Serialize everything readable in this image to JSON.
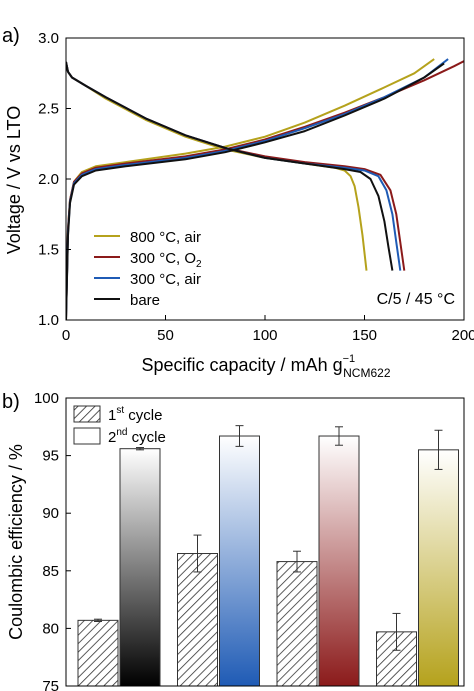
{
  "chart_data": [
    {
      "type": "line",
      "panel_label": "a)",
      "xlabel": "Specific capacity / mAh g",
      "xlabel_sup": "−1",
      "xlabel_sub": "NCM622",
      "ylabel": "Voltage / V vs LTO",
      "xlim": [
        0,
        200
      ],
      "ylim": [
        1.0,
        3.0
      ],
      "xticks": [
        "0",
        "50",
        "100",
        "150",
        "200"
      ],
      "yticks": [
        "1.0",
        "1.5",
        "2.0",
        "2.5",
        "3.0"
      ],
      "annotation": "C/5 / 45 °C",
      "legend_position": "bottom-left",
      "series": [
        {
          "name_main": "800 °C, air",
          "name_sub": "",
          "color": "#b5a21c",
          "charge": [
            [
              0,
              1.0
            ],
            [
              1,
              1.65
            ],
            [
              2,
              1.85
            ],
            [
              4,
              1.98
            ],
            [
              8,
              2.05
            ],
            [
              15,
              2.09
            ],
            [
              30,
              2.12
            ],
            [
              60,
              2.18
            ],
            [
              80,
              2.23
            ],
            [
              100,
              2.3
            ],
            [
              120,
              2.4
            ],
            [
              140,
              2.52
            ],
            [
              160,
              2.65
            ],
            [
              175,
              2.75
            ],
            [
              185,
              2.85
            ]
          ],
          "discharge": [
            [
              0,
              2.83
            ],
            [
              1,
              2.76
            ],
            [
              3,
              2.72
            ],
            [
              10,
              2.66
            ],
            [
              20,
              2.57
            ],
            [
              40,
              2.42
            ],
            [
              60,
              2.3
            ],
            [
              80,
              2.21
            ],
            [
              100,
              2.15
            ],
            [
              120,
              2.11
            ],
            [
              135,
              2.08
            ],
            [
              140,
              2.06
            ],
            [
              143,
              2.02
            ],
            [
              145,
              1.95
            ],
            [
              147,
              1.8
            ],
            [
              149,
              1.6
            ],
            [
              151,
              1.35
            ]
          ]
        },
        {
          "name_main": "300 °C, O",
          "name_sub": "2",
          "color": "#8b1a1a",
          "charge": [
            [
              0,
              1.0
            ],
            [
              1,
              1.65
            ],
            [
              2,
              1.85
            ],
            [
              4,
              1.98
            ],
            [
              8,
              2.04
            ],
            [
              15,
              2.08
            ],
            [
              30,
              2.11
            ],
            [
              60,
              2.16
            ],
            [
              80,
              2.21
            ],
            [
              100,
              2.28
            ],
            [
              120,
              2.37
            ],
            [
              140,
              2.47
            ],
            [
              160,
              2.58
            ],
            [
              180,
              2.7
            ],
            [
              195,
              2.8
            ],
            [
              202,
              2.85
            ]
          ],
          "discharge": [
            [
              0,
              2.83
            ],
            [
              1,
              2.76
            ],
            [
              3,
              2.72
            ],
            [
              10,
              2.66
            ],
            [
              20,
              2.58
            ],
            [
              40,
              2.43
            ],
            [
              60,
              2.31
            ],
            [
              80,
              2.22
            ],
            [
              100,
              2.16
            ],
            [
              120,
              2.12
            ],
            [
              140,
              2.09
            ],
            [
              150,
              2.07
            ],
            [
              158,
              2.03
            ],
            [
              163,
              1.92
            ],
            [
              166,
              1.75
            ],
            [
              168,
              1.55
            ],
            [
              170,
              1.35
            ]
          ]
        },
        {
          "name_main": "300 °C, air",
          "name_sub": "",
          "color": "#1f5bb5",
          "charge": [
            [
              0,
              1.0
            ],
            [
              1,
              1.62
            ],
            [
              2,
              1.84
            ],
            [
              4,
              1.97
            ],
            [
              8,
              2.03
            ],
            [
              15,
              2.07
            ],
            [
              30,
              2.1
            ],
            [
              60,
              2.15
            ],
            [
              80,
              2.2
            ],
            [
              100,
              2.27
            ],
            [
              120,
              2.36
            ],
            [
              140,
              2.46
            ],
            [
              160,
              2.58
            ],
            [
              180,
              2.72
            ],
            [
              192,
              2.85
            ]
          ],
          "discharge": [
            [
              0,
              2.83
            ],
            [
              1,
              2.76
            ],
            [
              3,
              2.72
            ],
            [
              10,
              2.66
            ],
            [
              20,
              2.58
            ],
            [
              40,
              2.43
            ],
            [
              60,
              2.31
            ],
            [
              80,
              2.22
            ],
            [
              100,
              2.15
            ],
            [
              120,
              2.11
            ],
            [
              140,
              2.08
            ],
            [
              150,
              2.06
            ],
            [
              157,
              2.02
            ],
            [
              161,
              1.92
            ],
            [
              164,
              1.75
            ],
            [
              166,
              1.55
            ],
            [
              168,
              1.35
            ]
          ]
        },
        {
          "name_main": "bare",
          "name_sub": "",
          "color": "#111111",
          "charge": [
            [
              0,
              1.0
            ],
            [
              1,
              1.6
            ],
            [
              2,
              1.83
            ],
            [
              4,
              1.96
            ],
            [
              8,
              2.02
            ],
            [
              15,
              2.06
            ],
            [
              30,
              2.09
            ],
            [
              60,
              2.14
            ],
            [
              80,
              2.19
            ],
            [
              100,
              2.26
            ],
            [
              120,
              2.34
            ],
            [
              140,
              2.45
            ],
            [
              160,
              2.57
            ],
            [
              180,
              2.72
            ],
            [
              190,
              2.82
            ]
          ],
          "discharge": [
            [
              0,
              2.83
            ],
            [
              1,
              2.76
            ],
            [
              3,
              2.72
            ],
            [
              10,
              2.66
            ],
            [
              20,
              2.58
            ],
            [
              40,
              2.43
            ],
            [
              60,
              2.31
            ],
            [
              80,
              2.22
            ],
            [
              100,
              2.15
            ],
            [
              120,
              2.11
            ],
            [
              140,
              2.07
            ],
            [
              148,
              2.05
            ],
            [
              153,
              2.0
            ],
            [
              157,
              1.88
            ],
            [
              160,
              1.7
            ],
            [
              162,
              1.52
            ],
            [
              164,
              1.35
            ]
          ]
        }
      ]
    },
    {
      "type": "bar",
      "panel_label": "b)",
      "ylabel": "Coulombic efficiency / %",
      "ylim": [
        75,
        100
      ],
      "yticks": [
        "75",
        "80",
        "85",
        "90",
        "95",
        "100"
      ],
      "legend_position": "top-left",
      "legend": [
        {
          "pre": "1",
          "sup": "st",
          "post": " cycle",
          "pattern": "hatch"
        },
        {
          "pre": "2",
          "sup": "nd",
          "post": " cycle",
          "pattern": "plain"
        }
      ],
      "groups": [
        {
          "color": "#000000",
          "first": 80.7,
          "first_err": 0.1,
          "second": 95.6,
          "second_err": 0.1
        },
        {
          "color": "#1f5bb5",
          "first": 86.5,
          "first_err": 1.6,
          "second": 96.7,
          "second_err": 0.9
        },
        {
          "color": "#8b1a1a",
          "first": 85.8,
          "first_err": 0.9,
          "second": 96.7,
          "second_err": 0.8
        },
        {
          "color": "#b5a21c",
          "first": 79.7,
          "first_err": 1.6,
          "second": 95.5,
          "second_err": 1.7
        }
      ]
    }
  ]
}
